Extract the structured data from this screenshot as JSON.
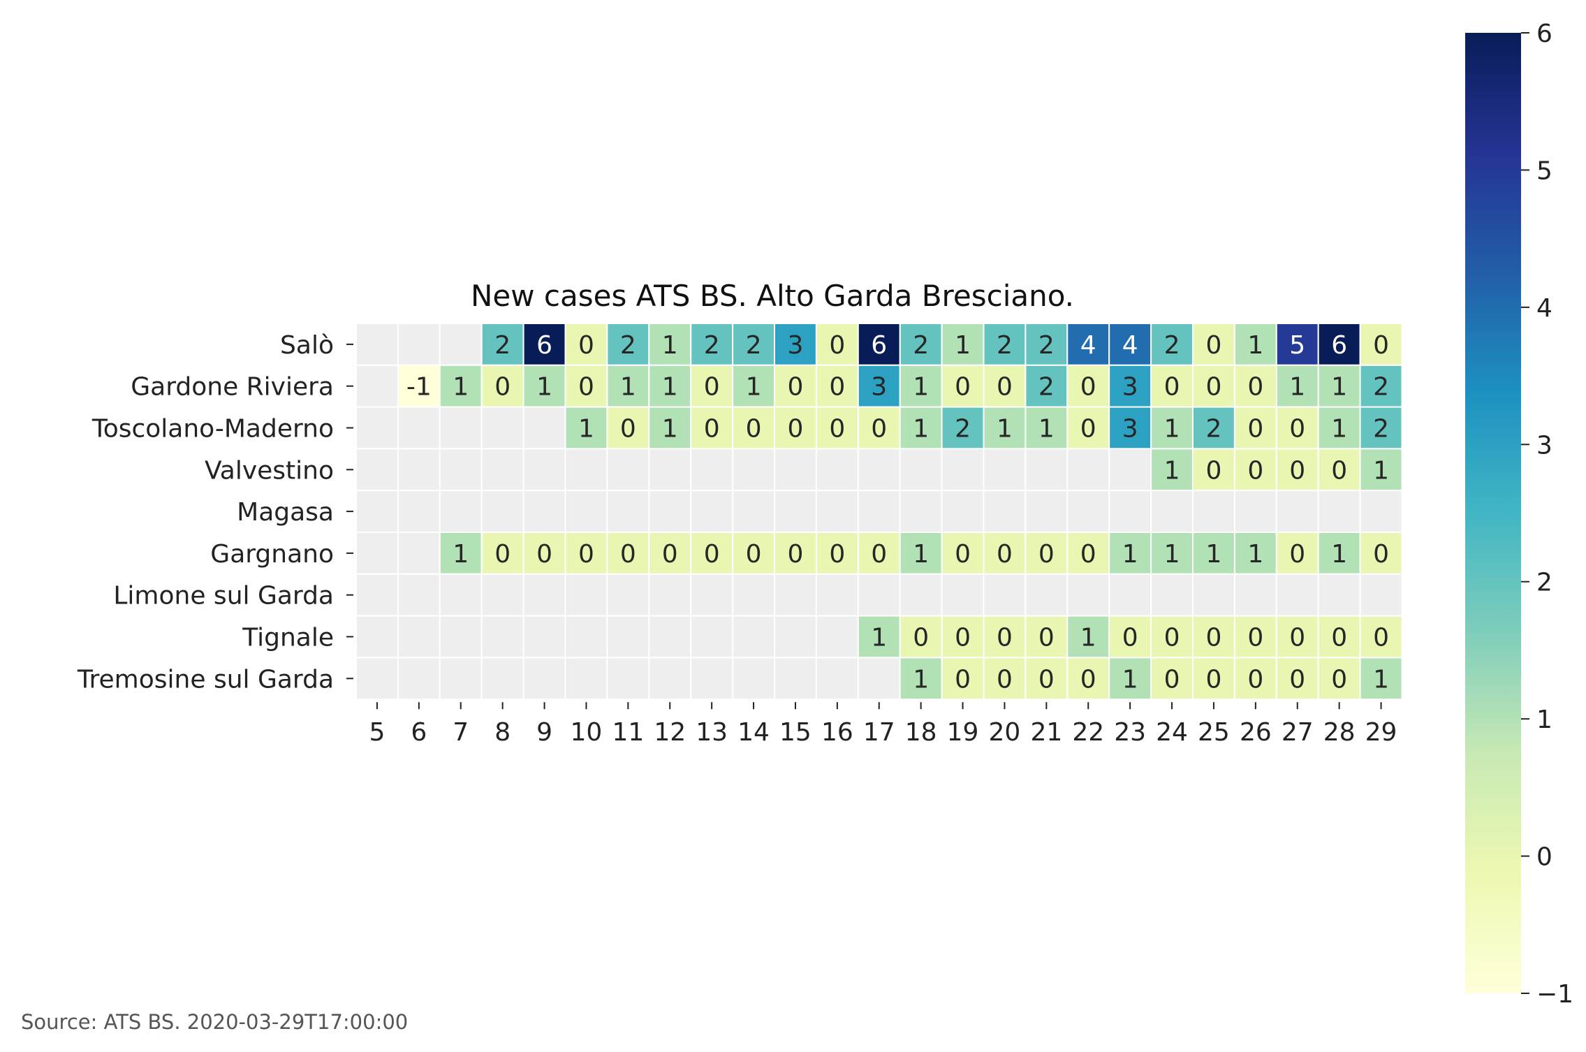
{
  "chart_data": {
    "type": "heatmap",
    "title": "New cases ATS BS. Alto Garda Bresciano.",
    "xlabel": "",
    "ylabel": "",
    "x": [
      5,
      6,
      7,
      8,
      9,
      10,
      11,
      12,
      13,
      14,
      15,
      16,
      17,
      18,
      19,
      20,
      21,
      22,
      23,
      24,
      25,
      26,
      27,
      28,
      29
    ],
    "y": [
      "Salò",
      "Gardone Riviera",
      "Toscolano-Maderno",
      "Valvestino",
      "Magasa",
      "Gargnano",
      "Limone sul Garda",
      "Tignale",
      "Tremosine sul Garda"
    ],
    "values": [
      [
        null,
        null,
        null,
        2,
        6,
        0,
        2,
        1,
        2,
        2,
        3,
        0,
        6,
        2,
        1,
        2,
        2,
        4,
        4,
        2,
        0,
        1,
        5,
        6,
        0
      ],
      [
        null,
        -1,
        1,
        0,
        1,
        0,
        1,
        1,
        0,
        1,
        0,
        0,
        3,
        1,
        0,
        0,
        2,
        0,
        3,
        0,
        0,
        0,
        1,
        1,
        2
      ],
      [
        null,
        null,
        null,
        null,
        null,
        1,
        0,
        1,
        0,
        0,
        0,
        0,
        0,
        1,
        2,
        1,
        1,
        0,
        3,
        1,
        2,
        0,
        0,
        1,
        2
      ],
      [
        null,
        null,
        null,
        null,
        null,
        null,
        null,
        null,
        null,
        null,
        null,
        null,
        null,
        null,
        null,
        null,
        null,
        null,
        null,
        1,
        0,
        0,
        0,
        0,
        1
      ],
      [
        null,
        null,
        null,
        null,
        null,
        null,
        null,
        null,
        null,
        null,
        null,
        null,
        null,
        null,
        null,
        null,
        null,
        null,
        null,
        null,
        null,
        null,
        null,
        null,
        null
      ],
      [
        null,
        null,
        1,
        0,
        0,
        0,
        0,
        0,
        0,
        0,
        0,
        0,
        0,
        1,
        0,
        0,
        0,
        0,
        1,
        1,
        1,
        1,
        0,
        1,
        0
      ],
      [
        null,
        null,
        null,
        null,
        null,
        null,
        null,
        null,
        null,
        null,
        null,
        null,
        null,
        null,
        null,
        null,
        null,
        null,
        null,
        null,
        null,
        null,
        null,
        null,
        null
      ],
      [
        null,
        null,
        null,
        null,
        null,
        null,
        null,
        null,
        null,
        null,
        null,
        null,
        1,
        0,
        0,
        0,
        0,
        1,
        0,
        0,
        0,
        0,
        0,
        0,
        0
      ],
      [
        null,
        null,
        null,
        null,
        null,
        null,
        null,
        null,
        null,
        null,
        null,
        null,
        null,
        1,
        0,
        0,
        0,
        0,
        1,
        0,
        0,
        0,
        0,
        0,
        1
      ]
    ],
    "colorbar": {
      "range": [
        -1,
        6
      ],
      "ticks": [
        -1,
        0,
        1,
        2,
        3,
        4,
        5,
        6
      ],
      "tick_labels": [
        "−1",
        "0",
        "1",
        "2",
        "3",
        "4",
        "5",
        "6"
      ],
      "colormap": "YlGnBu",
      "stops": [
        "#ffffd9",
        "#edf8b1",
        "#c7e9b4",
        "#7fcdbb",
        "#41b6c4",
        "#1d91c0",
        "#225ea8",
        "#253494",
        "#081d58"
      ]
    },
    "missing_color": "#eeeeee",
    "grid": false,
    "legend": "colorbar-right"
  },
  "source": "Source: ATS BS. 2020-03-29T17:00:00"
}
